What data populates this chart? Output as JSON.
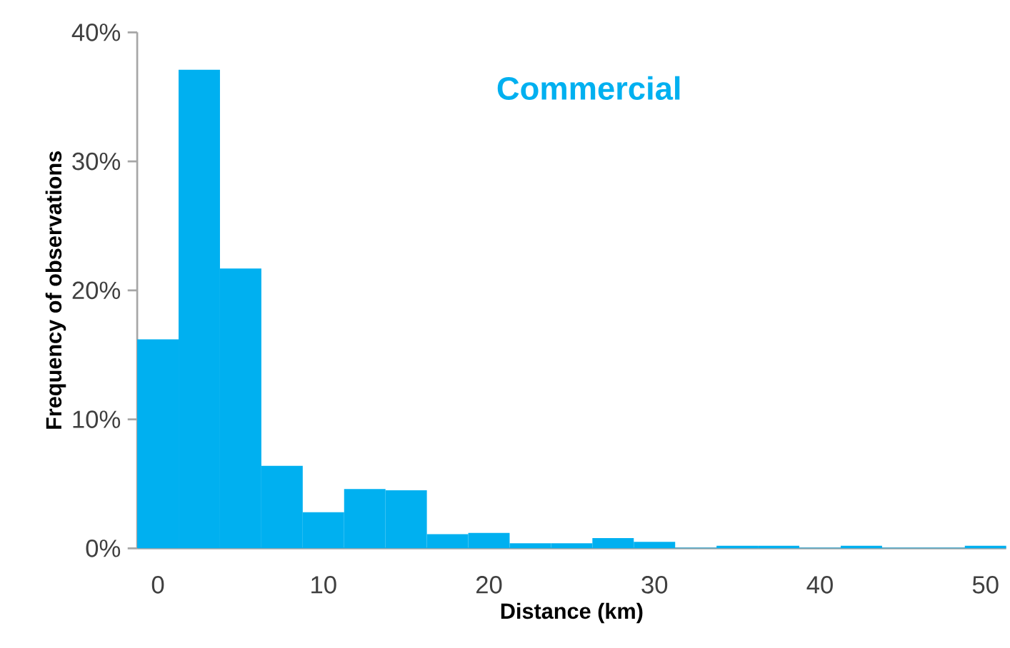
{
  "chart_data": {
    "type": "histogram",
    "title": "Commercial",
    "xlabel": "Distance (km)",
    "ylabel": "Frequency of observations",
    "bins": [
      -1.25,
      1.25,
      3.75,
      6.25,
      8.75,
      11.25,
      13.75,
      16.25,
      18.75,
      21.25,
      23.75,
      26.25,
      28.75,
      31.25,
      33.75,
      36.25,
      38.75,
      41.25,
      43.75,
      46.25,
      48.75,
      51.25
    ],
    "values": [
      16.2,
      37.1,
      21.7,
      6.4,
      2.8,
      4.6,
      4.5,
      1.1,
      1.2,
      0.4,
      0.4,
      0.8,
      0.5,
      0.05,
      0.2,
      0.2,
      0.05,
      0.2,
      0.05,
      0.05,
      0.2
    ],
    "color": "#00b0f0",
    "xlim": [
      -1.25,
      51.25
    ],
    "xticks": [
      0,
      10,
      20,
      30,
      40,
      50
    ],
    "ylim": [
      0,
      40
    ],
    "yticks": [
      {
        "value": 0,
        "label": "0%"
      },
      {
        "value": 10,
        "label": "10%"
      },
      {
        "value": 20,
        "label": "20%"
      },
      {
        "value": 30,
        "label": "30%"
      },
      {
        "value": 40,
        "label": "40%"
      }
    ],
    "grid": false,
    "legend": false
  }
}
